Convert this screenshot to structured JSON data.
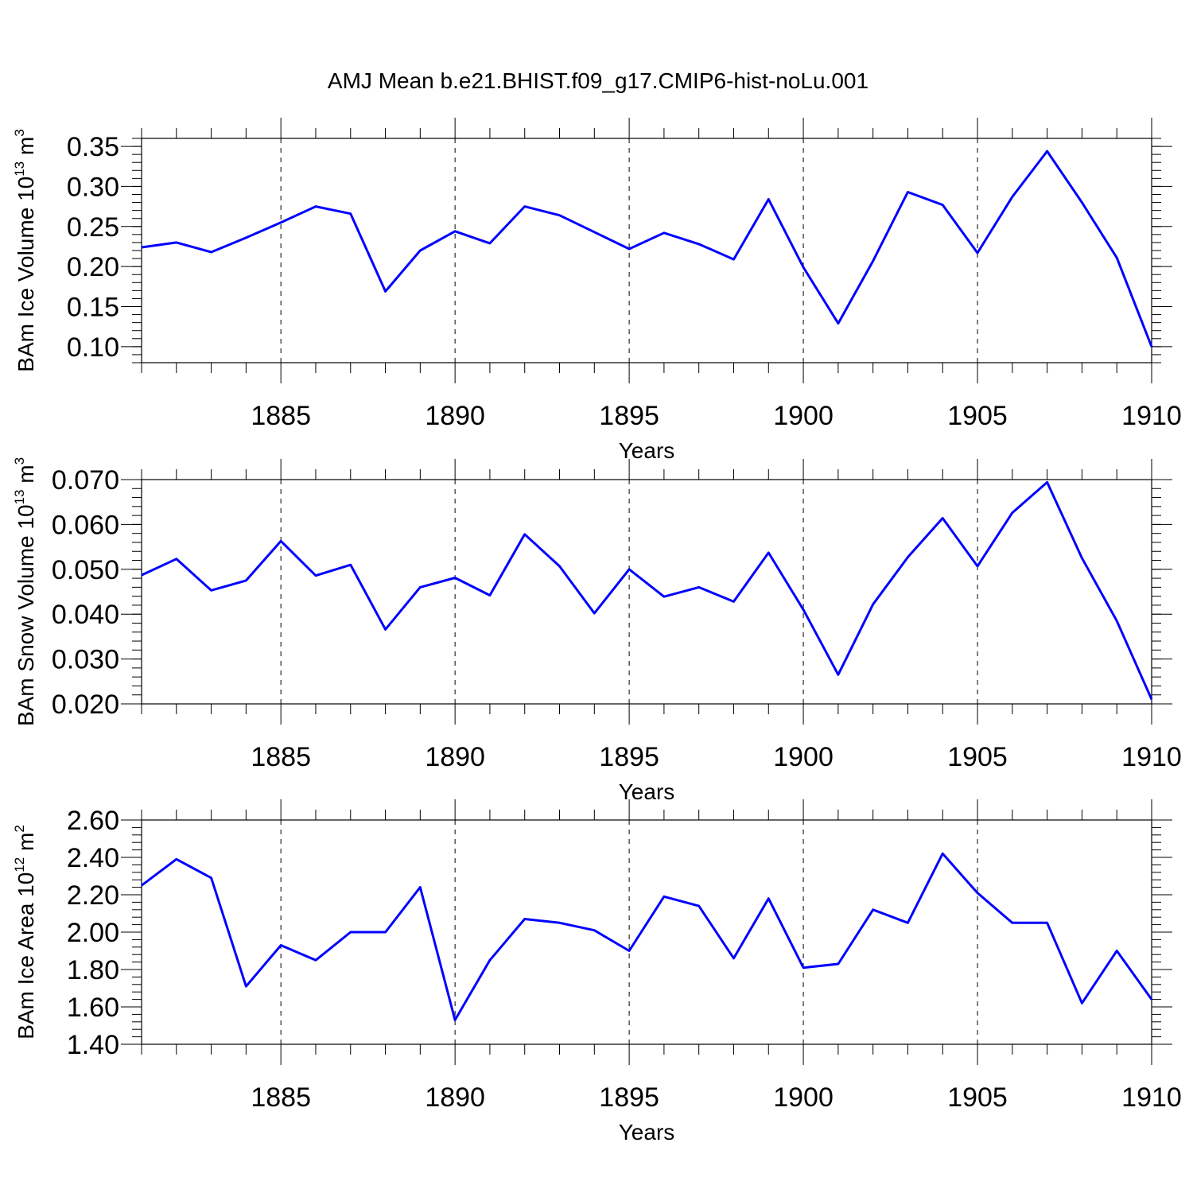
{
  "figure": {
    "title": "AMJ Mean b.e21.BHIST.f09_g17.CMIP6-hist-noLu.001",
    "line_color": "#0000ff"
  },
  "chart_data": [
    {
      "type": "line",
      "name": "ice-volume",
      "title": "",
      "xlabel": "Years",
      "ylabel": {
        "prefix": "BAm Ice Volume 10",
        "exp": "13",
        "unit": " m",
        "unit_exp": "3"
      },
      "xlim": [
        1881,
        1910
      ],
      "ylim": [
        0.08,
        0.36
      ],
      "x_ticks": [
        1885,
        1890,
        1895,
        1900,
        1905,
        1910
      ],
      "x_tick_labels": [
        "1885",
        "1890",
        "1895",
        "1900",
        "1905",
        "1910"
      ],
      "y_ticks": [
        0.1,
        0.15,
        0.2,
        0.25,
        0.3,
        0.35
      ],
      "y_tick_labels": [
        "0.10",
        "0.15",
        "0.20",
        "0.25",
        "0.30",
        "0.35"
      ],
      "y_minor_step": 0.01,
      "grid": "vertical-dashed",
      "x": [
        1881,
        1882,
        1883,
        1884,
        1885,
        1886,
        1887,
        1888,
        1889,
        1890,
        1891,
        1892,
        1893,
        1894,
        1895,
        1896,
        1897,
        1898,
        1899,
        1900,
        1901,
        1902,
        1903,
        1904,
        1905,
        1906,
        1907,
        1908,
        1909,
        1910
      ],
      "values": [
        0.224,
        0.23,
        0.218,
        0.236,
        0.255,
        0.275,
        0.266,
        0.169,
        0.22,
        0.244,
        0.229,
        0.275,
        0.264,
        0.243,
        0.222,
        0.242,
        0.228,
        0.209,
        0.284,
        0.199,
        0.129,
        0.207,
        0.293,
        0.277,
        0.217,
        0.287,
        0.344,
        0.28,
        0.211,
        0.1
      ]
    },
    {
      "type": "line",
      "name": "snow-volume",
      "title": "",
      "xlabel": "Years",
      "ylabel": {
        "prefix": "BAm Snow Volume 10",
        "exp": "13",
        "unit": " m",
        "unit_exp": "3"
      },
      "xlim": [
        1881,
        1910
      ],
      "ylim": [
        0.02,
        0.07
      ],
      "x_ticks": [
        1885,
        1890,
        1895,
        1900,
        1905,
        1910
      ],
      "x_tick_labels": [
        "1885",
        "1890",
        "1895",
        "1900",
        "1905",
        "1910"
      ],
      "y_ticks": [
        0.02,
        0.03,
        0.04,
        0.05,
        0.06,
        0.07
      ],
      "y_tick_labels": [
        "0.020",
        "0.030",
        "0.040",
        "0.050",
        "0.060",
        "0.070"
      ],
      "y_minor_step": 0.002,
      "grid": "vertical-dashed",
      "x": [
        1881,
        1882,
        1883,
        1884,
        1885,
        1886,
        1887,
        1888,
        1889,
        1890,
        1891,
        1892,
        1893,
        1894,
        1895,
        1896,
        1897,
        1898,
        1899,
        1900,
        1901,
        1902,
        1903,
        1904,
        1905,
        1906,
        1907,
        1908,
        1909,
        1910
      ],
      "values": [
        0.0487,
        0.0523,
        0.0453,
        0.0475,
        0.0563,
        0.0486,
        0.051,
        0.0366,
        0.046,
        0.0481,
        0.0442,
        0.0578,
        0.0507,
        0.0402,
        0.05,
        0.0439,
        0.046,
        0.0428,
        0.0537,
        0.041,
        0.0265,
        0.0422,
        0.0527,
        0.0614,
        0.0507,
        0.0626,
        0.0694,
        0.0525,
        0.0385,
        0.021
      ]
    },
    {
      "type": "line",
      "name": "ice-area",
      "title": "",
      "xlabel": "Years",
      "ylabel": {
        "prefix": "BAm Ice Area 10",
        "exp": "12",
        "unit": " m",
        "unit_exp": "2"
      },
      "xlim": [
        1881,
        1910
      ],
      "ylim": [
        1.4,
        2.6
      ],
      "x_ticks": [
        1885,
        1890,
        1895,
        1900,
        1905,
        1910
      ],
      "x_tick_labels": [
        "1885",
        "1890",
        "1895",
        "1900",
        "1905",
        "1910"
      ],
      "y_ticks": [
        1.4,
        1.6,
        1.8,
        2.0,
        2.2,
        2.4,
        2.6
      ],
      "y_tick_labels": [
        "1.40",
        "1.60",
        "1.80",
        "2.00",
        "2.20",
        "2.40",
        "2.60"
      ],
      "y_minor_step": 0.04,
      "grid": "vertical-dashed",
      "x": [
        1881,
        1882,
        1883,
        1884,
        1885,
        1886,
        1887,
        1888,
        1889,
        1890,
        1891,
        1892,
        1893,
        1894,
        1895,
        1896,
        1897,
        1898,
        1899,
        1900,
        1901,
        1902,
        1903,
        1904,
        1905,
        1906,
        1907,
        1908,
        1909,
        1910
      ],
      "values": [
        2.25,
        2.39,
        2.29,
        1.71,
        1.93,
        1.85,
        2.0,
        2.0,
        2.24,
        1.53,
        1.85,
        2.07,
        2.05,
        2.01,
        1.9,
        2.19,
        2.14,
        1.86,
        2.18,
        1.81,
        1.83,
        2.12,
        2.05,
        2.42,
        2.21,
        2.05,
        2.05,
        1.62,
        1.9,
        1.64
      ]
    }
  ]
}
